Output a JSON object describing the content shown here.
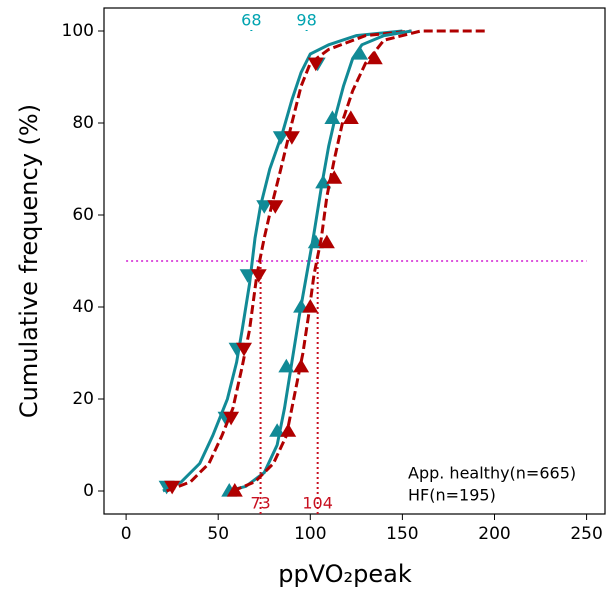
{
  "chart_data": {
    "type": "line",
    "xlabel": "ppVO₂peak",
    "ylabel": "Cumulative frequency (%)",
    "xlim": [
      -12,
      260
    ],
    "ylim": [
      -5,
      105
    ],
    "xticks": [
      0,
      50,
      100,
      150,
      200,
      250
    ],
    "yticks": [
      0,
      20,
      40,
      60,
      80,
      100
    ],
    "series": [
      {
        "color": "#118a96",
        "dash": false,
        "marker": "down",
        "x": [
          20,
          30,
          40,
          47,
          55,
          60,
          63,
          67,
          70,
          73,
          78,
          85,
          90,
          95,
          100,
          110,
          125,
          150
        ],
        "values": [
          0,
          2,
          6,
          12,
          20,
          28,
          35,
          45,
          55,
          62,
          70,
          78,
          85,
          91,
          95,
          97,
          99,
          100
        ],
        "markers": {
          "x": [
            22,
            54,
            60,
            66,
            75,
            84,
            104
          ],
          "values": [
            1,
            16,
            31,
            47,
            62,
            77,
            93
          ]
        }
      },
      {
        "color": "#b00000",
        "dash": true,
        "marker": "down",
        "x": [
          22,
          35,
          45,
          52,
          58,
          63,
          67,
          71,
          75,
          79,
          84,
          90,
          95,
          100,
          110,
          130,
          155
        ],
        "values": [
          0,
          2,
          6,
          12,
          18,
          27,
          35,
          47,
          55,
          62,
          70,
          80,
          88,
          93,
          96,
          99,
          100
        ],
        "markers": {
          "x": [
            25,
            57,
            64,
            72,
            81,
            90,
            103
          ],
          "values": [
            1,
            16,
            31,
            47,
            62,
            77,
            93
          ]
        }
      },
      {
        "color": "#118a96",
        "dash": false,
        "marker": "up",
        "x": [
          55,
          65,
          75,
          82,
          86,
          90,
          94,
          98,
          102,
          106,
          110,
          114,
          118,
          123,
          128,
          140,
          155
        ],
        "values": [
          0,
          1,
          4,
          10,
          18,
          28,
          38,
          47,
          56,
          66,
          75,
          82,
          88,
          94,
          97,
          99,
          100
        ],
        "markers": {
          "x": [
            56,
            82,
            87,
            95,
            103,
            107,
            112,
            127
          ],
          "values": [
            0,
            13,
            27,
            40,
            54,
            67,
            81,
            95
          ]
        }
      },
      {
        "color": "#b00000",
        "dash": true,
        "marker": "up",
        "x": [
          58,
          70,
          80,
          87,
          92,
          96,
          99,
          102,
          106,
          109,
          113,
          118,
          123,
          130,
          140,
          160,
          195
        ],
        "values": [
          0,
          2,
          6,
          12,
          22,
          30,
          38,
          47,
          55,
          64,
          72,
          81,
          87,
          93,
          98,
          100,
          100
        ],
        "markers": {
          "x": [
            59,
            88,
            95,
            100,
            109,
            113,
            122,
            135
          ],
          "values": [
            0,
            13,
            27,
            40,
            54,
            68,
            81,
            94
          ]
        }
      }
    ],
    "hline": {
      "value": 50,
      "color": "#dd55dd"
    },
    "vlines": [
      {
        "value": 68,
        "color": "#00a3b0",
        "position": "top"
      },
      {
        "value": 98,
        "color": "#00a3b0",
        "position": "top"
      },
      {
        "value": 73,
        "color": "#c81020",
        "position": "bottom"
      },
      {
        "value": 104,
        "color": "#c81020",
        "position": "bottom"
      }
    ],
    "legend": [
      "App. healthy(n=665)",
      "HF(n=195)"
    ]
  }
}
